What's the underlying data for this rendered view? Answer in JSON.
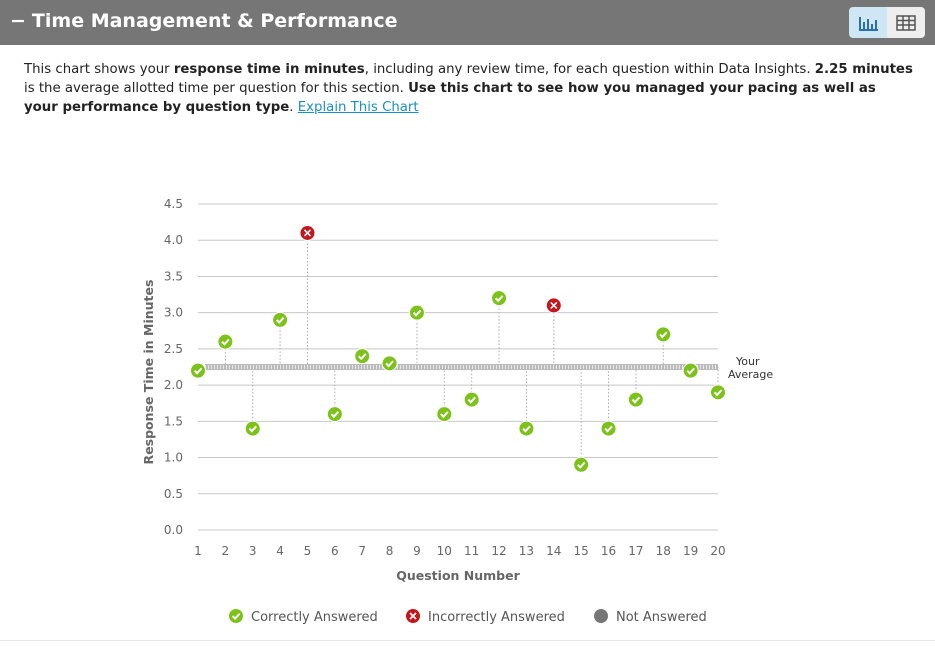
{
  "header": {
    "toggle": "−",
    "title": "Time Management & Performance"
  },
  "description": [
    {
      "text": "This chart shows your ",
      "bold": false
    },
    {
      "text": "response time in minutes",
      "bold": true
    },
    {
      "text": ", including any review time, for each question within Data Insights. ",
      "bold": false
    },
    {
      "text": "2.25 minutes",
      "bold": true
    },
    {
      "text": " is the average allotted time per question for this section. ",
      "bold": false
    },
    {
      "text": "Use this chart to see how you managed your pacing as well as your performance by question type",
      "bold": true
    },
    {
      "text": ". ",
      "bold": false
    }
  ],
  "link": "Explain This Chart",
  "chart_data": {
    "type": "scatter",
    "x_label": "Question Number",
    "y_label": "Response Time in Minutes",
    "xlim": [
      1,
      20
    ],
    "xticks": [
      1,
      2,
      3,
      4,
      5,
      6,
      7,
      8,
      9,
      10,
      11,
      12,
      13,
      14,
      15,
      16,
      17,
      18,
      19,
      20
    ],
    "ylim": [
      0,
      4.5
    ],
    "yticks": [
      {
        "value": 0,
        "label": "0.0"
      },
      0.5,
      {
        "value": 1,
        "label": "1.0"
      },
      1.5,
      {
        "value": 2,
        "label": "2.0"
      },
      2.5,
      {
        "value": 3,
        "label": "3.0"
      },
      3.5,
      {
        "value": 4,
        "label": "4.0"
      },
      4.5
    ],
    "grid": true,
    "average": 2.25,
    "average_label": [
      "Your",
      "Average"
    ],
    "series": [
      {
        "name": "Correctly Answered",
        "color": "#7cc21b",
        "marker": "check",
        "x": [
          1,
          2,
          3,
          4,
          6,
          7,
          8,
          9,
          10,
          11,
          12,
          13,
          15,
          16,
          17,
          18,
          19,
          20
        ],
        "values": [
          2.2,
          2.6,
          1.4,
          2.9,
          1.6,
          2.4,
          2.3,
          3.0,
          1.6,
          1.8,
          3.2,
          1.4,
          0.9,
          1.4,
          1.8,
          2.7,
          2.2,
          1.9
        ]
      },
      {
        "name": "Incorrectly Answered",
        "color": "#c4161c",
        "marker": "cross",
        "x": [
          5,
          14
        ],
        "values": [
          4.1,
          3.1
        ]
      },
      {
        "name": "Not Answered",
        "color": "#777777",
        "marker": "dot",
        "x": [],
        "values": []
      }
    ]
  }
}
